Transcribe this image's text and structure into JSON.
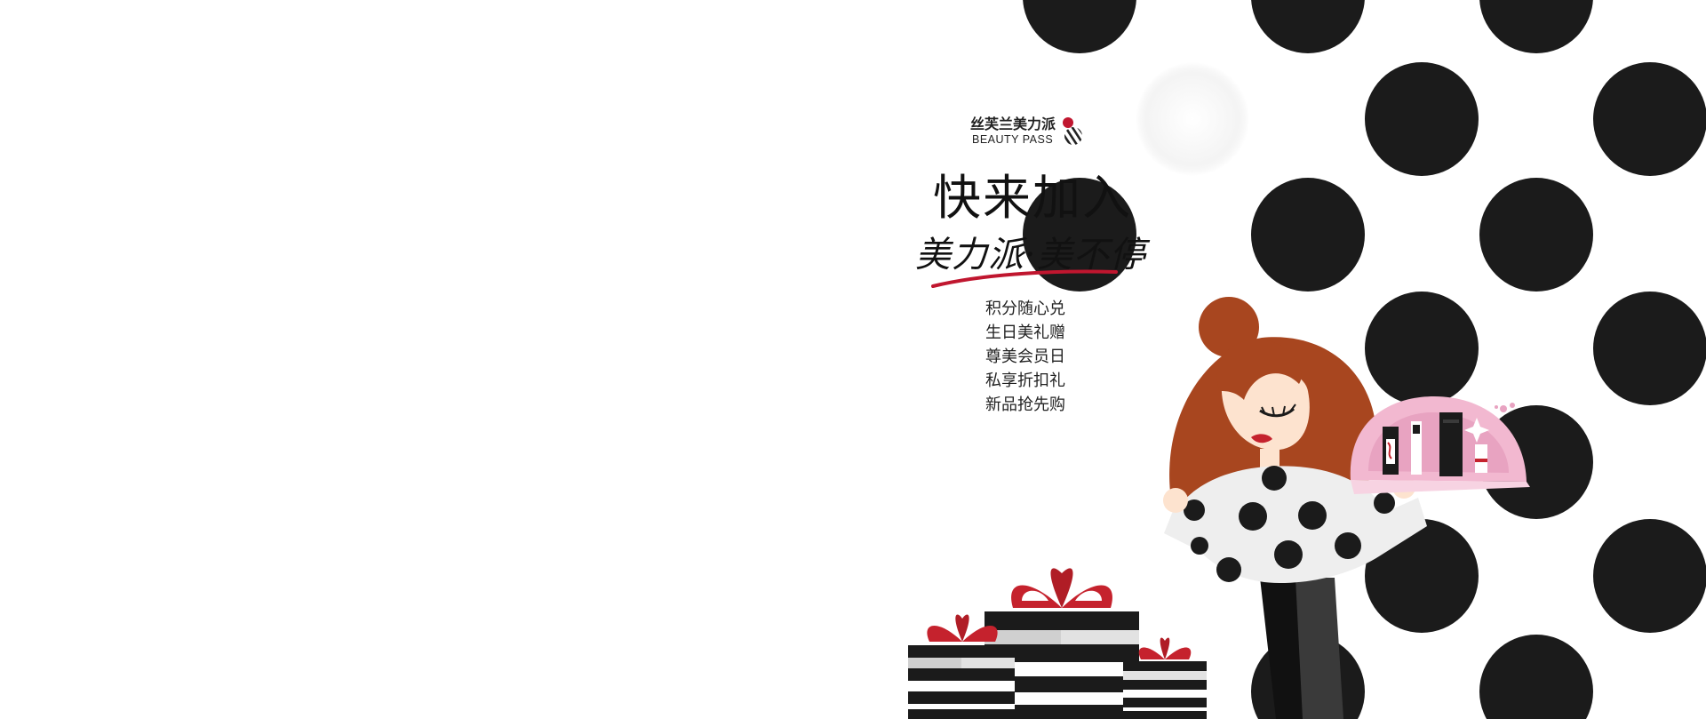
{
  "brand": {
    "name_cn": "丝芙兰美力派",
    "name_en": "BEAUTY PASS"
  },
  "hero": {
    "headline": "快来加入",
    "slogan": "美力派·美不停"
  },
  "benefits": [
    "积分随心兑",
    "生日美礼赠",
    "尊美会员日",
    "私享折扣礼",
    "新品抢先购"
  ],
  "colors": {
    "brand_red": "#c0162f",
    "dot_black": "#1b1b1b",
    "hair": "#a8461f",
    "gift_red": "#c5222d",
    "case_pink": "#f3b4cf"
  }
}
